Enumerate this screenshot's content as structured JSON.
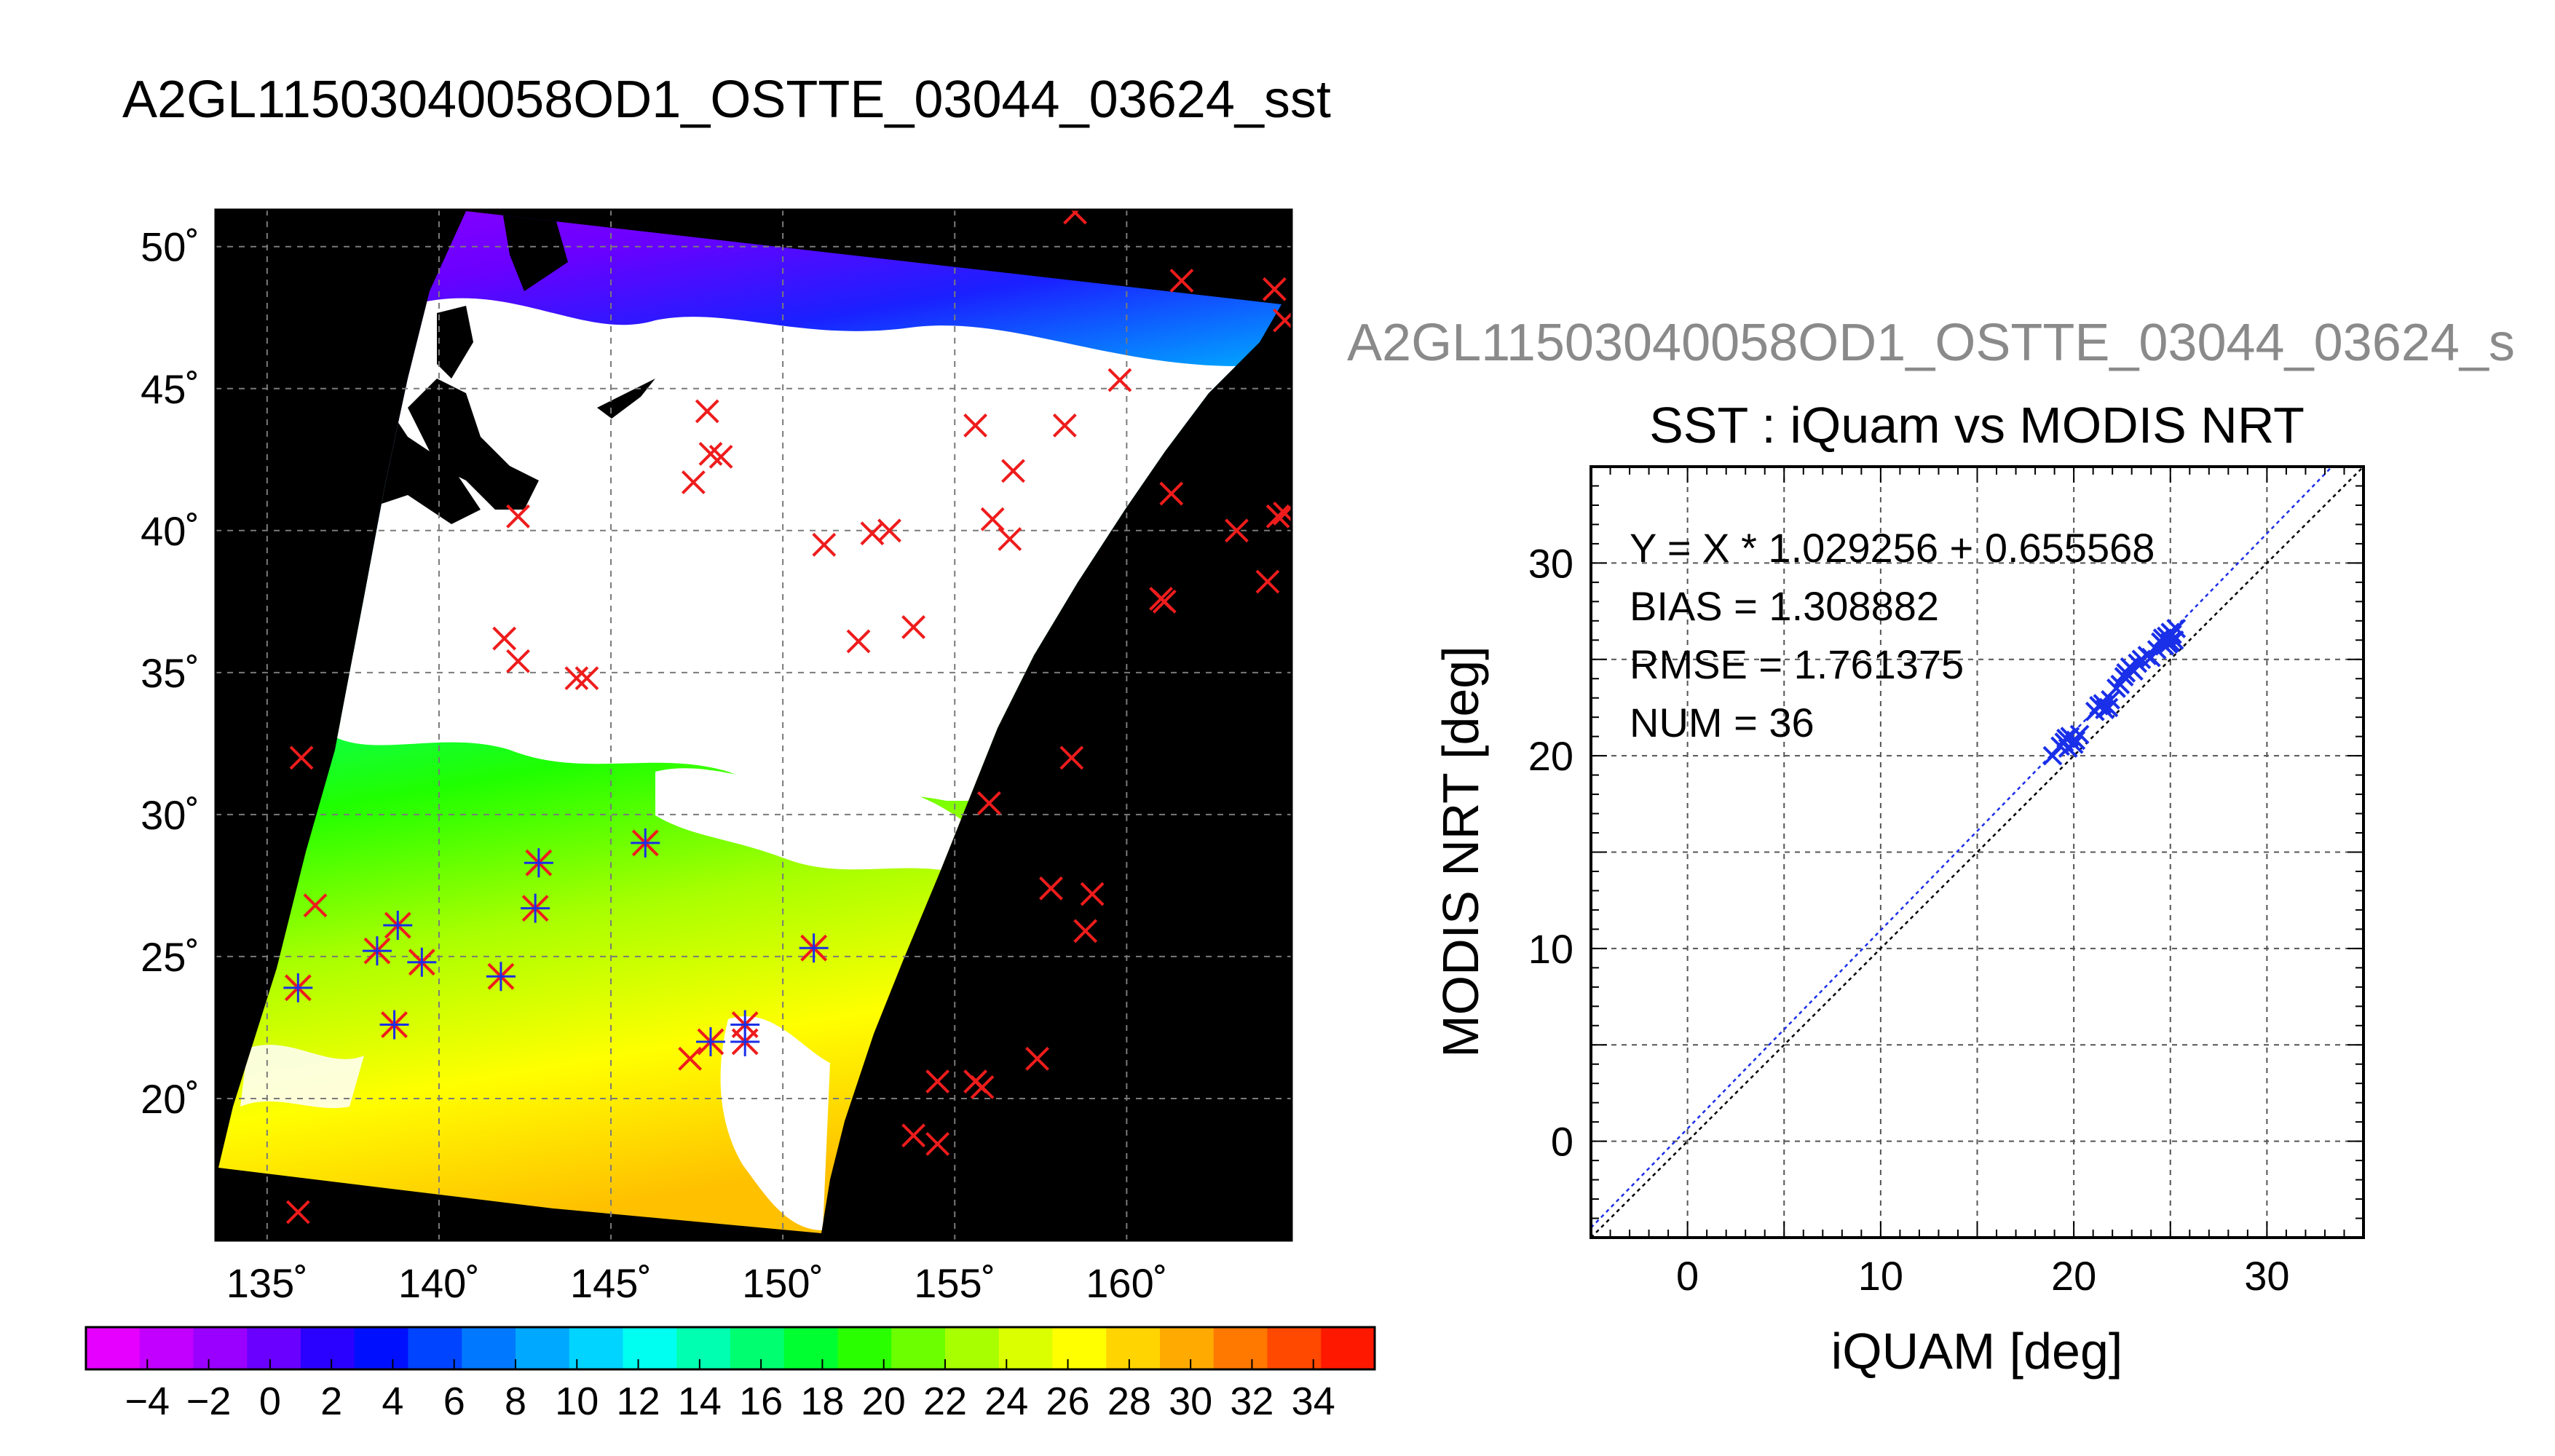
{
  "header": {
    "title": "A2GL11503040058OD1_OSTTE_03044_03624_sst"
  },
  "scatter_header": {
    "file_title": "A2GL11503040058OD1_OSTTE_03044_03624_s"
  },
  "colors": {
    "match_blue": "#1a2fe8",
    "outside_red": "#ee1c1c",
    "land_black": "#000000",
    "cloud_white": "#ffffff",
    "grid_gray": "#7a7a7a"
  },
  "chart_data": [
    {
      "type": "heatmap",
      "title": "",
      "xlim": [
        133.5,
        164.8
      ],
      "ylim": [
        15,
        51.3
      ],
      "x_ticks": [
        135,
        140,
        145,
        150,
        155,
        160
      ],
      "y_ticks": [
        20,
        25,
        30,
        35,
        40,
        45,
        50
      ],
      "x_tick_labels": [
        "135˚",
        "140˚",
        "145˚",
        "150˚",
        "155˚",
        "160˚"
      ],
      "y_tick_labels": [
        "20˚",
        "25˚",
        "30˚",
        "35˚",
        "40˚",
        "45˚",
        "50˚"
      ],
      "grid": true,
      "colorbar": {
        "ticks": [
          -4,
          -2,
          0,
          2,
          4,
          6,
          8,
          10,
          12,
          14,
          16,
          18,
          20,
          22,
          24,
          26,
          28,
          30,
          32,
          34
        ],
        "tick_labels": [
          "−4",
          "−2",
          "0",
          "2",
          "4",
          "6",
          "8",
          "10",
          "12",
          "14",
          "16",
          "18",
          "20",
          "22",
          "24",
          "26",
          "28",
          "30",
          "32",
          "34"
        ],
        "colors": [
          "#e600ff",
          "#c200ff",
          "#9a00ff",
          "#6a00ff",
          "#2a00ff",
          "#0010ff",
          "#0044ff",
          "#0078ff",
          "#00a8ff",
          "#00d4ff",
          "#00fff0",
          "#00ffb0",
          "#00ff70",
          "#00ff30",
          "#2aff00",
          "#6cff00",
          "#a8ff00",
          "#dcff00",
          "#ffff00",
          "#ffd400",
          "#ffaa00",
          "#ff7800",
          "#ff4800",
          "#ff1800"
        ]
      },
      "matchups_in_swath": [
        [
          135.9,
          23.9
        ],
        [
          138.2,
          25.2
        ],
        [
          138.8,
          26.1
        ],
        [
          138.7,
          22.6
        ],
        [
          139.5,
          24.8
        ],
        [
          141.8,
          24.3
        ],
        [
          142.8,
          26.7
        ],
        [
          142.9,
          28.3
        ],
        [
          146.0,
          29.0
        ],
        [
          147.9,
          22.0
        ],
        [
          148.9,
          22.0
        ],
        [
          148.9,
          22.6
        ],
        [
          150.9,
          25.3
        ]
      ],
      "buoys_outside": [
        [
          158.5,
          51.2
        ],
        [
          161.6,
          48.8
        ],
        [
          164.3,
          48.5
        ],
        [
          164.6,
          47.4
        ],
        [
          147.8,
          44.2
        ],
        [
          147.4,
          41.7
        ],
        [
          147.9,
          42.7
        ],
        [
          148.2,
          42.6
        ],
        [
          155.6,
          43.7
        ],
        [
          158.2,
          43.7
        ],
        [
          159.8,
          45.3
        ],
        [
          156.7,
          42.1
        ],
        [
          156.1,
          40.4
        ],
        [
          156.6,
          39.7
        ],
        [
          161.3,
          41.3
        ],
        [
          163.2,
          40.0
        ],
        [
          164.4,
          40.5
        ],
        [
          164.6,
          40.6
        ],
        [
          164.1,
          38.2
        ],
        [
          161.1,
          37.5
        ],
        [
          161.0,
          37.6
        ],
        [
          151.2,
          39.5
        ],
        [
          152.6,
          39.9
        ],
        [
          153.1,
          40.0
        ],
        [
          153.8,
          36.6
        ],
        [
          152.2,
          36.1
        ],
        [
          142.3,
          40.5
        ],
        [
          141.9,
          36.2
        ],
        [
          142.3,
          35.4
        ],
        [
          144.0,
          34.8
        ],
        [
          144.3,
          34.8
        ],
        [
          136.0,
          32.0
        ],
        [
          136.4,
          26.8
        ],
        [
          156.0,
          30.4
        ],
        [
          158.4,
          32.0
        ],
        [
          157.8,
          27.4
        ],
        [
          159.0,
          27.2
        ],
        [
          158.8,
          25.9
        ],
        [
          157.4,
          21.4
        ],
        [
          155.6,
          20.6
        ],
        [
          155.8,
          20.4
        ],
        [
          154.5,
          20.6
        ],
        [
          153.8,
          18.7
        ],
        [
          154.5,
          18.4
        ],
        [
          147.3,
          21.4
        ],
        [
          135.9,
          16.0
        ]
      ]
    },
    {
      "type": "scatter",
      "title": "SST : iQuam vs MODIS NRT",
      "xlabel": "iQUAM [deg]",
      "ylabel": "MODIS NRT [deg]",
      "xlim": [
        -5,
        35
      ],
      "ylim": [
        -5,
        35
      ],
      "x_ticks": [
        0,
        10,
        20,
        30
      ],
      "y_ticks": [
        0,
        10,
        20,
        30
      ],
      "grid": true,
      "stats": {
        "equation": "Y = X * 1.029256 + 0.655568",
        "bias": "BIAS = 1.308882",
        "rmse": "RMSE = 1.761375",
        "num": "NUM = 36"
      },
      "regression": {
        "slope": 1.029256,
        "intercept": 0.655568
      },
      "points": [
        [
          18.9,
          20.0
        ],
        [
          19.3,
          20.5
        ],
        [
          19.6,
          20.9
        ],
        [
          19.8,
          21.0
        ],
        [
          20.0,
          20.6
        ],
        [
          20.1,
          20.8
        ],
        [
          19.7,
          20.4
        ],
        [
          21.3,
          22.6
        ],
        [
          21.6,
          22.4
        ],
        [
          21.8,
          22.5
        ],
        [
          21.5,
          22.7
        ],
        [
          22.4,
          23.7
        ],
        [
          22.6,
          24.1
        ],
        [
          22.9,
          24.6
        ],
        [
          23.1,
          24.4
        ],
        [
          22.7,
          24.3
        ],
        [
          23.8,
          25.2
        ],
        [
          24.0,
          25.1
        ],
        [
          24.5,
          25.9
        ],
        [
          24.8,
          26.2
        ],
        [
          25.0,
          26.4
        ],
        [
          25.2,
          26.0
        ],
        [
          24.9,
          25.8
        ],
        [
          25.1,
          26.3
        ],
        [
          24.6,
          26.1
        ],
        [
          23.5,
          25.0
        ],
        [
          19.5,
          20.7
        ],
        [
          21.9,
          22.9
        ],
        [
          22.2,
          23.5
        ],
        [
          24.3,
          25.5
        ],
        [
          25.3,
          26.6
        ],
        [
          20.3,
          21.1
        ],
        [
          21.1,
          22.3
        ],
        [
          23.3,
          24.8
        ],
        [
          24.7,
          25.7
        ],
        [
          25.0,
          25.9
        ]
      ]
    }
  ]
}
